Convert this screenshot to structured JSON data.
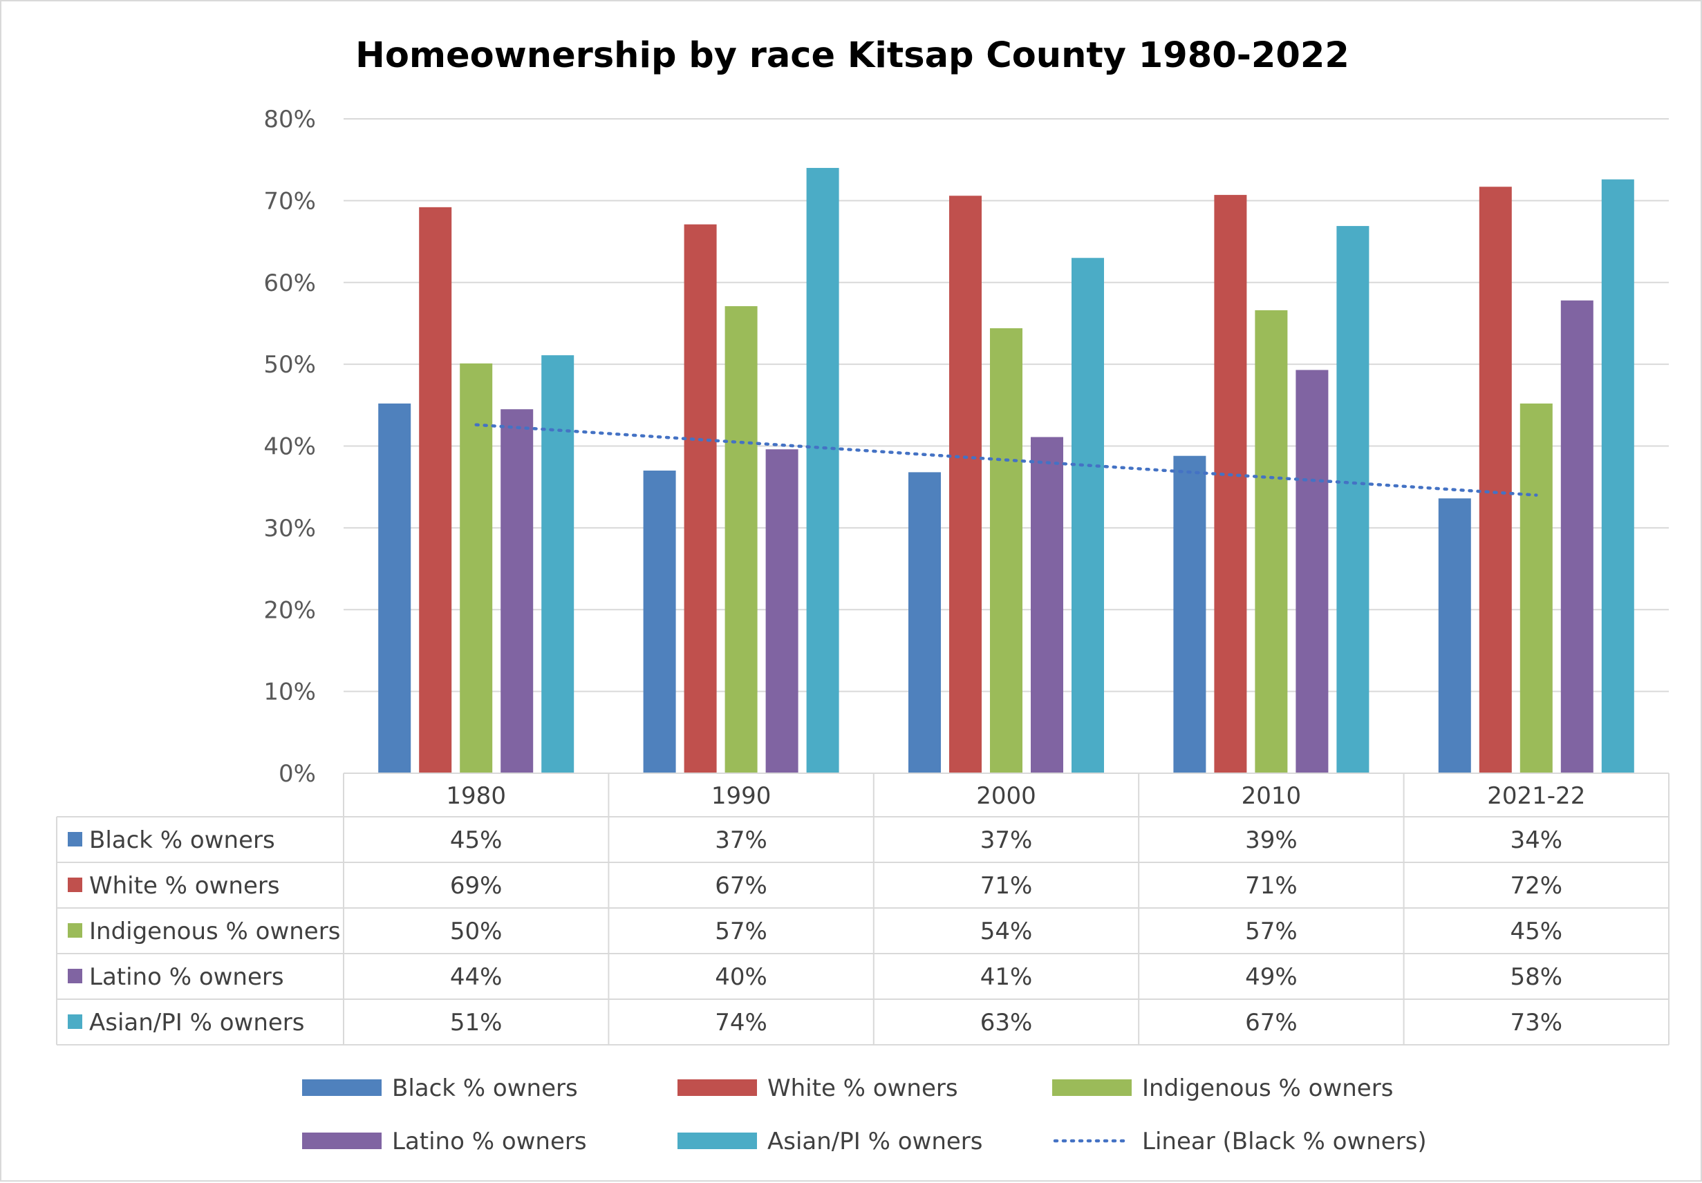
{
  "chart_data": {
    "type": "bar",
    "title": "Homeownership by race  Kitsap County 1980-2022",
    "categories": [
      "1980",
      "1990",
      "2000",
      "2010",
      "2021-22"
    ],
    "ylim": [
      0,
      80
    ],
    "y_ticks": [
      "0%",
      "10%",
      "20%",
      "30%",
      "40%",
      "50%",
      "60%",
      "70%",
      "80%"
    ],
    "grid": true,
    "data_table": true,
    "legend_position": "bottom",
    "series": [
      {
        "name": "Black % owners",
        "color": "#4f81bd",
        "values": [
          45.2,
          37.0,
          36.8,
          38.8,
          33.6
        ],
        "labels": [
          "45%",
          "37%",
          "37%",
          "39%",
          "34%"
        ]
      },
      {
        "name": "White % owners",
        "color": "#c0504d",
        "values": [
          69.2,
          67.1,
          70.6,
          70.7,
          71.7
        ],
        "labels": [
          "69%",
          "67%",
          "71%",
          "71%",
          "72%"
        ]
      },
      {
        "name": "Indigenous % owners",
        "color": "#9bbb59",
        "values": [
          50.1,
          57.1,
          54.4,
          56.6,
          45.2
        ],
        "labels": [
          "50%",
          "57%",
          "54%",
          "57%",
          "45%"
        ]
      },
      {
        "name": "Latino % owners",
        "color": "#8064a2",
        "values": [
          44.5,
          39.6,
          41.1,
          49.3,
          57.8
        ],
        "labels": [
          "44%",
          "40%",
          "41%",
          "49%",
          "58%"
        ]
      },
      {
        "name": "Asian/PI % owners",
        "color": "#4bacc6",
        "values": [
          51.1,
          74.0,
          63.0,
          66.9,
          72.6
        ],
        "labels": [
          "51%",
          "74%",
          "63%",
          "67%",
          "73%"
        ]
      }
    ],
    "trendline": {
      "name": "Linear (Black % owners)",
      "of_series": "Black % owners",
      "color": "#4472c4",
      "start": 42.6,
      "end": 34.0
    }
  }
}
